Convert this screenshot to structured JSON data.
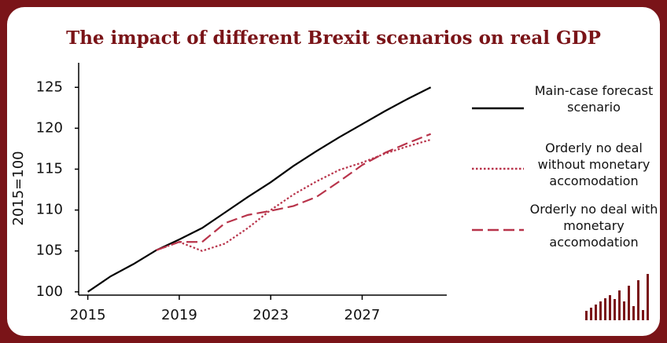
{
  "chart_data": {
    "type": "line",
    "title": "The impact of different Brexit scenarios on real GDP",
    "y_label": "2015=100",
    "x": [
      2015,
      2016,
      2017,
      2018,
      2019,
      2020,
      2021,
      2022,
      2023,
      2024,
      2025,
      2026,
      2027,
      2028,
      2029,
      2030
    ],
    "series": [
      {
        "name": "Main-case forecast scenario",
        "color": "#000000",
        "dash": "solid",
        "values": [
          100,
          101.9,
          103.4,
          105.1,
          106.4,
          107.8,
          109.7,
          111.6,
          113.4,
          115.4,
          117.2,
          118.9,
          120.5,
          122.1,
          123.6,
          125
        ]
      },
      {
        "name": "Orderly no deal without monetary accomodation",
        "color": "#b8334a",
        "dash": "dotted",
        "values": [
          null,
          null,
          null,
          105.1,
          106.1,
          105.0,
          105.9,
          107.8,
          110.0,
          111.9,
          113.5,
          114.9,
          115.8,
          116.9,
          117.8,
          118.6
        ]
      },
      {
        "name": "Orderly no deal with monetary accomodation",
        "color": "#b8334a",
        "dash": "dashed",
        "values": [
          null,
          null,
          null,
          105.1,
          106.1,
          106.1,
          108.4,
          109.4,
          109.9,
          110.5,
          111.6,
          113.5,
          115.5,
          117.0,
          118.2,
          119.3
        ]
      }
    ],
    "xlim": [
      2014.6,
      2030.7
    ],
    "xticks": [
      2015,
      2019,
      2023,
      2027
    ],
    "ylim": [
      99.6,
      128
    ],
    "yticks": [
      100,
      105,
      110,
      115,
      120,
      125
    ],
    "legend": "right"
  }
}
